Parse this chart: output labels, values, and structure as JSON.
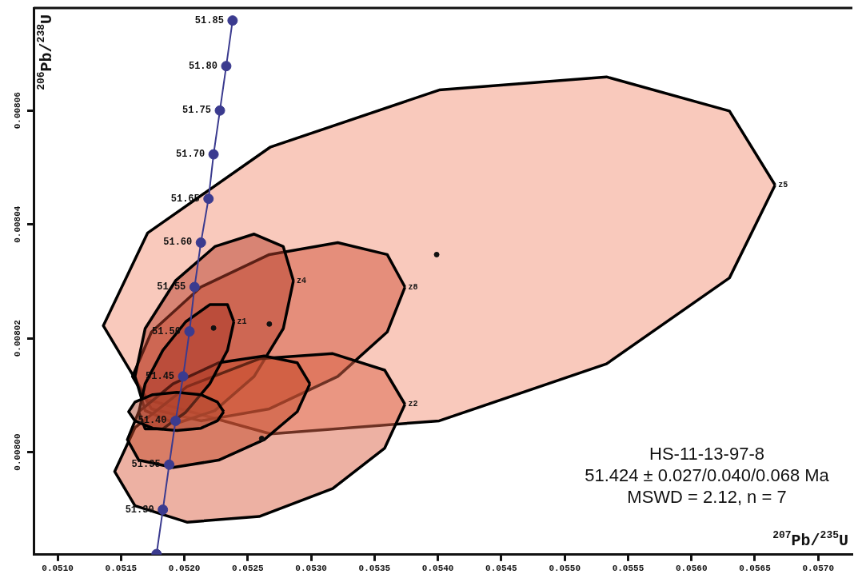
{
  "chart_data": {
    "type": "area",
    "xlabel": "$^{207}$Pb/$^{235}$U",
    "ylabel": "$^{206}$Pb/$^{238}$U",
    "xlim": [
      0.05081,
      0.05727
    ],
    "ylim": [
      0.007982,
      0.008078
    ],
    "xticks": [
      {
        "value": 0.051,
        "label": "0.0510"
      },
      {
        "value": 0.0515,
        "label": "0.0515"
      },
      {
        "value": 0.052,
        "label": "0.0520"
      },
      {
        "value": 0.0525,
        "label": "0.0525"
      },
      {
        "value": 0.053,
        "label": "0.0530"
      },
      {
        "value": 0.0535,
        "label": "0.0535"
      },
      {
        "value": 0.054,
        "label": "0.0540"
      },
      {
        "value": 0.0545,
        "label": "0.0545"
      },
      {
        "value": 0.055,
        "label": "0.0550"
      },
      {
        "value": 0.0555,
        "label": "0.0555"
      },
      {
        "value": 0.056,
        "label": "0.0560"
      },
      {
        "value": 0.0565,
        "label": "0.0565"
      },
      {
        "value": 0.057,
        "label": "0.0570"
      }
    ],
    "yticks": [
      {
        "value": 0.008,
        "label": "0.00800"
      },
      {
        "value": 0.00802,
        "label": "0.00802"
      },
      {
        "value": 0.00804,
        "label": "0.00804"
      },
      {
        "value": 0.00806,
        "label": "0.00806"
      }
    ],
    "grid": false,
    "legend": false,
    "series": [
      {
        "type": "line",
        "color": "#3b3b8f",
        "marker": "circle",
        "x": [
          0.05238,
          0.05233,
          0.05228,
          0.05223,
          0.05219,
          0.05213,
          0.05208,
          0.05204,
          0.05199,
          0.05193,
          0.05188,
          0.05183,
          0.05178
        ],
        "values": [
          0.0080758,
          0.0080678,
          0.00806,
          0.0080523,
          0.0080445,
          0.0080368,
          0.008029,
          0.0080212,
          0.0080133,
          0.0080055,
          0.0079978,
          0.0079899,
          0.0079821
        ]
      },
      {
        "type": "area",
        "name": "z5",
        "color": "#f4937a",
        "x": [
          0.05666,
          0.0563,
          0.05533,
          0.05401,
          0.05268,
          0.05171,
          0.05136,
          0.05171,
          0.05268,
          0.05401,
          0.05533,
          0.0563,
          0.05666
        ],
        "values": [
          0.0080469,
          0.0080599,
          0.0080659,
          0.0080636,
          0.0080536,
          0.0080385,
          0.0080222,
          0.0080092,
          0.0080032,
          0.0080055,
          0.0080155,
          0.0080306,
          0.0080469
        ]
      },
      {
        "type": "area",
        "name": "z8",
        "color": "#d2543a",
        "x": [
          0.05374,
          0.0536,
          0.05321,
          0.05267,
          0.05213,
          0.05174,
          0.05159,
          0.05174,
          0.05213,
          0.05267,
          0.05321,
          0.0536,
          0.05374
        ],
        "values": [
          0.008029,
          0.0080347,
          0.0080368,
          0.0080347,
          0.008029,
          0.0080211,
          0.0080133,
          0.0080076,
          0.0080055,
          0.0080076,
          0.0080133,
          0.0080211,
          0.008029
        ]
      },
      {
        "type": "area",
        "name": "z4",
        "color": "#b8402c",
        "x": [
          0.05286,
          0.05278,
          0.05255,
          0.05224,
          0.05193,
          0.05169,
          0.05161,
          0.05169,
          0.05193,
          0.05224,
          0.05255,
          0.05278,
          0.05286
        ],
        "values": [
          0.0080301,
          0.0080361,
          0.0080383,
          0.0080361,
          0.0080301,
          0.0080217,
          0.0080133,
          0.0080073,
          0.008005,
          0.0080073,
          0.0080133,
          0.0080217,
          0.0080301
        ]
      },
      {
        "type": "area",
        "name": "z2",
        "color": "#dc6448",
        "x": [
          0.05374,
          0.05358,
          0.05317,
          0.05259,
          0.05202,
          0.05161,
          0.05145,
          0.05161,
          0.05202,
          0.05259,
          0.05317,
          0.05358,
          0.05374
        ],
        "values": [
          0.0080084,
          0.0080144,
          0.0080173,
          0.0080164,
          0.0080115,
          0.0080043,
          0.0079966,
          0.0079906,
          0.0079877,
          0.0079887,
          0.0079936,
          0.0080007,
          0.0080084
        ]
      },
      {
        "type": "area",
        "color": "#c44a2a",
        "x": [
          0.05299,
          0.05289,
          0.05263,
          0.05227,
          0.05191,
          0.05164,
          0.05155,
          0.05164,
          0.05191,
          0.05227,
          0.05263,
          0.05289,
          0.05299
        ],
        "values": [
          0.008012,
          0.0080157,
          0.0080169,
          0.0080157,
          0.008012,
          0.0080071,
          0.0080022,
          0.0079986,
          0.0079973,
          0.0079986,
          0.0080022,
          0.0080071,
          0.008012
        ]
      },
      {
        "type": "area",
        "name": "z1",
        "color": "#a83424",
        "x": [
          0.05239,
          0.05234,
          0.0522,
          0.05201,
          0.05183,
          0.05169,
          0.05164,
          0.05169,
          0.05183,
          0.05201,
          0.0522,
          0.05234,
          0.05239
        ],
        "values": [
          0.0080229,
          0.0080259,
          0.0080259,
          0.0080229,
          0.0080179,
          0.008012,
          0.008007,
          0.0080041,
          0.0080041,
          0.008007,
          0.008012,
          0.0080179,
          0.0080229
        ]
      },
      {
        "type": "area",
        "color": "#b04830",
        "x": [
          0.05231,
          0.05226,
          0.05213,
          0.05194,
          0.05175,
          0.05161,
          0.05156,
          0.05161,
          0.05175,
          0.05194,
          0.05213,
          0.05226,
          0.05231
        ],
        "values": [
          0.0080071,
          0.0080088,
          0.0080101,
          0.0080105,
          0.0080101,
          0.0080088,
          0.0080071,
          0.0080055,
          0.0080042,
          0.0080038,
          0.0080042,
          0.0080055,
          0.0080071
        ]
      },
      {
        "type": "scatter",
        "color": "#111111",
        "marker": "circle",
        "x": [
          0.05399,
          0.05267,
          0.05223,
          0.05261
        ],
        "values": [
          0.0080347,
          0.0080225,
          0.0080218,
          0.0080024
        ]
      }
    ],
    "annotations": [
      {
        "text": "51.85",
        "x": 0.05238,
        "y": 0.0080758
      },
      {
        "text": "51.80",
        "x": 0.05233,
        "y": 0.0080678
      },
      {
        "text": "51.75",
        "x": 0.05228,
        "y": 0.00806
      },
      {
        "text": "51.70",
        "x": 0.05223,
        "y": 0.0080523
      },
      {
        "text": "51.65",
        "x": 0.05219,
        "y": 0.0080445
      },
      {
        "text": "51.60",
        "x": 0.05213,
        "y": 0.0080368
      },
      {
        "text": "51.55",
        "x": 0.05208,
        "y": 0.008029
      },
      {
        "text": "51.50",
        "x": 0.05204,
        "y": 0.0080212
      },
      {
        "text": "51.45",
        "x": 0.05199,
        "y": 0.0080133
      },
      {
        "text": "51.40",
        "x": 0.05193,
        "y": 0.0080055
      },
      {
        "text": "51.35",
        "x": 0.05188,
        "y": 0.0079978
      },
      {
        "text": "51.30",
        "x": 0.05183,
        "y": 0.0079899
      },
      "HS-11-13-97-8",
      "51.424 ± 0.027/0.040/0.068 Ma",
      "MSWD = 2.12, n = 7"
    ]
  }
}
